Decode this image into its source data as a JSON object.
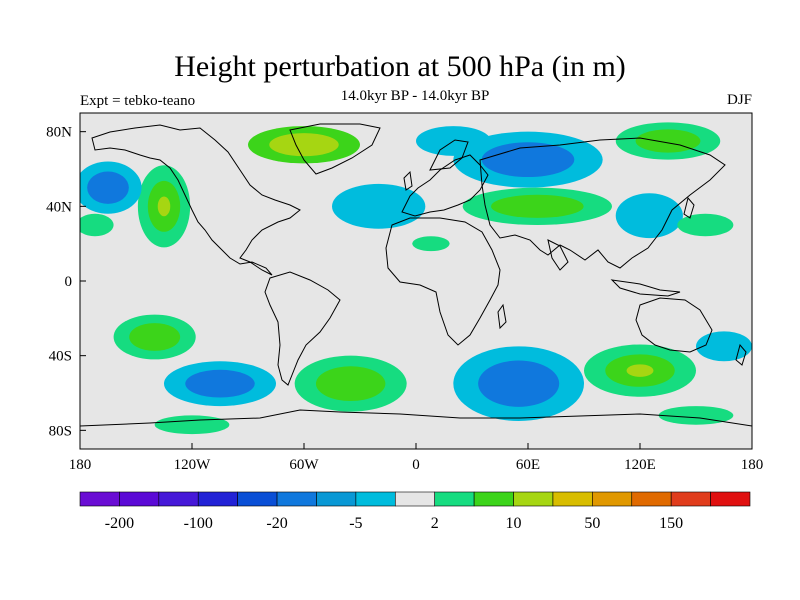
{
  "title": "Height perturbation at 500 hPa (in m)",
  "subtitle": "14.0kyr BP - 14.0kyr BP",
  "experiment": "Expt = tebko-teano",
  "season": "DJF",
  "map": {
    "lat_labels": [
      {
        "lat": 80,
        "label": "80N"
      },
      {
        "lat": 40,
        "label": "40N"
      },
      {
        "lat": 0,
        "label": "0"
      },
      {
        "lat": -40,
        "label": "40S"
      },
      {
        "lat": -80,
        "label": "80S"
      }
    ],
    "lon_labels": [
      {
        "lon": -180,
        "label": "180"
      },
      {
        "lon": -120,
        "label": "120W"
      },
      {
        "lon": -60,
        "label": "60W"
      },
      {
        "lon": 0,
        "label": "0"
      },
      {
        "lon": 60,
        "label": "60E"
      },
      {
        "lon": 120,
        "label": "120E"
      },
      {
        "lon": 180,
        "label": "180"
      }
    ],
    "lon_range": [
      -180,
      180
    ],
    "lat_range": [
      -90,
      90
    ],
    "background_color": "#e6e6e6",
    "features": [
      {
        "name": "anomaly-greenland",
        "lon": -60,
        "lat": 73,
        "rx": 30,
        "ry": 10,
        "levels": [
          10,
          50
        ]
      },
      {
        "name": "anomaly-alaska",
        "lon": -135,
        "lat": 40,
        "rx": 14,
        "ry": 22,
        "levels": [
          2,
          10,
          50
        ]
      },
      {
        "name": "anomaly-north-pacific-west",
        "lon": -165,
        "lat": 50,
        "rx": 18,
        "ry": 14,
        "levels": [
          -5,
          -20
        ]
      },
      {
        "name": "anomaly-north-pacific-east",
        "lon": -172,
        "lat": 30,
        "rx": 10,
        "ry": 6,
        "levels": [
          2
        ]
      },
      {
        "name": "anomaly-north-atlantic",
        "lon": -20,
        "lat": 40,
        "rx": 25,
        "ry": 12,
        "levels": [
          -5
        ]
      },
      {
        "name": "anomaly-europe-arctic",
        "lon": 20,
        "lat": 75,
        "rx": 20,
        "ry": 8,
        "levels": [
          -5
        ]
      },
      {
        "name": "anomaly-siberia",
        "lon": 60,
        "lat": 65,
        "rx": 40,
        "ry": 15,
        "levels": [
          -5,
          -20
        ]
      },
      {
        "name": "anomaly-central-asia",
        "lon": 65,
        "lat": 40,
        "rx": 40,
        "ry": 10,
        "levels": [
          2,
          10
        ]
      },
      {
        "name": "anomaly-east-siberian-sea",
        "lon": 135,
        "lat": 75,
        "rx": 28,
        "ry": 10,
        "levels": [
          2,
          10
        ]
      },
      {
        "name": "anomaly-japan",
        "lon": 125,
        "lat": 35,
        "rx": 18,
        "ry": 12,
        "levels": [
          -5
        ]
      },
      {
        "name": "anomaly-north-pacific-far-east",
        "lon": 155,
        "lat": 30,
        "rx": 15,
        "ry": 6,
        "levels": [
          2
        ]
      },
      {
        "name": "anomaly-north-africa",
        "lon": 8,
        "lat": 20,
        "rx": 10,
        "ry": 4,
        "levels": [
          2
        ]
      },
      {
        "name": "anomaly-south-pacific-west",
        "lon": -140,
        "lat": -30,
        "rx": 22,
        "ry": 12,
        "levels": [
          2,
          10
        ]
      },
      {
        "name": "anomaly-south-pacific-mid",
        "lon": -105,
        "lat": -55,
        "rx": 30,
        "ry": 12,
        "levels": [
          -5,
          -20
        ]
      },
      {
        "name": "anomaly-south-atlantic",
        "lon": -35,
        "lat": -55,
        "rx": 30,
        "ry": 15,
        "levels": [
          2,
          10
        ]
      },
      {
        "name": "anomaly-south-indian",
        "lon": 55,
        "lat": -55,
        "rx": 35,
        "ry": 20,
        "levels": [
          -5,
          -20
        ]
      },
      {
        "name": "anomaly-australia-south",
        "lon": 120,
        "lat": -48,
        "rx": 30,
        "ry": 14,
        "levels": [
          2,
          10,
          50
        ]
      },
      {
        "name": "anomaly-tasman",
        "lon": 165,
        "lat": -35,
        "rx": 15,
        "ry": 8,
        "levels": [
          -5
        ]
      },
      {
        "name": "anomaly-antarctic-west",
        "lon": -120,
        "lat": -77,
        "rx": 20,
        "ry": 5,
        "levels": [
          2
        ]
      },
      {
        "name": "anomaly-antarctic-east",
        "lon": 150,
        "lat": -72,
        "rx": 20,
        "ry": 5,
        "levels": [
          2
        ]
      }
    ]
  },
  "colorbar": {
    "colors": [
      "#6a0dd4",
      "#5b0ad6",
      "#4618d8",
      "#2222d6",
      "#0a4fd6",
      "#1078dd",
      "#0998d5",
      "#00bcdd",
      "#e6e6e6",
      "#16dc80",
      "#3cd41a",
      "#a6d612",
      "#d8bd00",
      "#e09800",
      "#e06a00",
      "#e03c1c",
      "#e01010"
    ],
    "labels": [
      {
        "index": 1,
        "label": "-200"
      },
      {
        "index": 3,
        "label": "-100"
      },
      {
        "index": 5,
        "label": "-20"
      },
      {
        "index": 7,
        "label": "-5"
      },
      {
        "index": 9,
        "label": "2"
      },
      {
        "index": 11,
        "label": "10"
      },
      {
        "index": 13,
        "label": "50"
      },
      {
        "index": 15,
        "label": "150"
      }
    ]
  },
  "levels": [
    -200,
    -150,
    -100,
    -50,
    -20,
    -10,
    -5,
    -2,
    2,
    5,
    10,
    20,
    50,
    100,
    150,
    200
  ],
  "level_colors": {
    "-20": "#1078dd",
    "-5": "#00bcdd",
    "2": "#16dc80",
    "10": "#3cd41a",
    "50": "#a6d612"
  }
}
